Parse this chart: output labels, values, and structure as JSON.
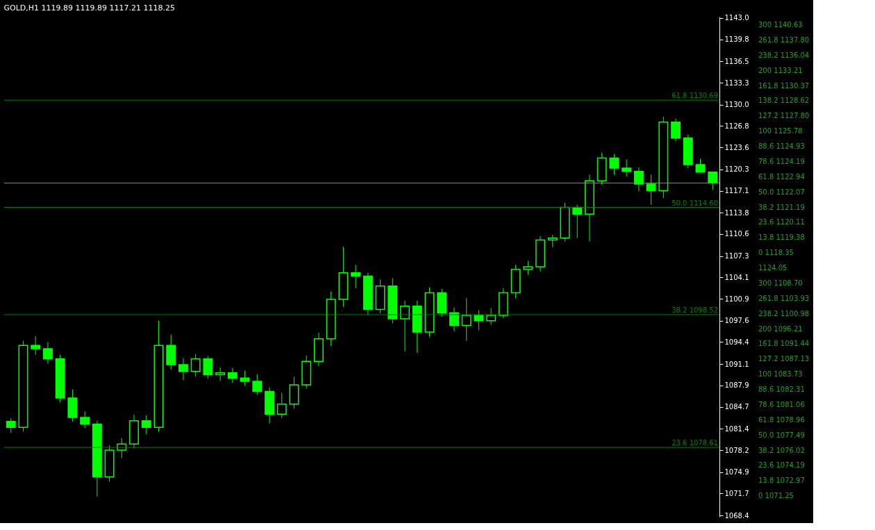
{
  "chart_data": {
    "type": "candlestick",
    "title": "GOLD,H1  1119.89 1119.89 1117.21 1118.25",
    "categories": [
      null,
      null,
      null,
      null,
      null,
      null,
      null,
      null,
      null,
      null,
      null,
      null,
      null,
      null,
      null,
      null,
      null,
      null,
      null,
      null,
      null,
      null,
      null,
      null,
      null,
      null,
      null,
      null,
      null,
      null,
      null,
      null,
      null,
      null,
      null,
      null,
      null,
      null,
      null,
      null,
      null,
      null,
      null,
      null,
      null,
      null,
      null,
      null,
      null,
      null,
      null,
      null,
      null,
      null,
      null,
      null,
      null,
      null
    ],
    "ohlc": [
      [
        1082.5,
        1083.0,
        1080.8,
        1081.6
      ],
      [
        1081.6,
        1094.6,
        1081.0,
        1093.9
      ],
      [
        1093.9,
        1095.3,
        1092.5,
        1093.4
      ],
      [
        1093.4,
        1094.4,
        1091.2,
        1091.9
      ],
      [
        1091.9,
        1092.5,
        1085.4,
        1086.0
      ],
      [
        1086.0,
        1087.3,
        1082.5,
        1083.1
      ],
      [
        1083.1,
        1084.0,
        1081.5,
        1082.1
      ],
      [
        1082.1,
        1082.6,
        1071.25,
        1074.2
      ],
      [
        1074.2,
        1078.9,
        1073.5,
        1078.2
      ],
      [
        1078.2,
        1080.0,
        1077.0,
        1079.1
      ],
      [
        1079.1,
        1083.5,
        1078.5,
        1082.6
      ],
      [
        1082.6,
        1083.4,
        1080.6,
        1081.6
      ],
      [
        1081.6,
        1097.6,
        1081.0,
        1093.9
      ],
      [
        1093.9,
        1095.5,
        1090.3,
        1091.0
      ],
      [
        1091.0,
        1092.0,
        1088.7,
        1090.0
      ],
      [
        1090.0,
        1092.6,
        1089.2,
        1091.9
      ],
      [
        1091.9,
        1092.3,
        1088.9,
        1089.5
      ],
      [
        1089.5,
        1090.6,
        1088.6,
        1089.8
      ],
      [
        1089.8,
        1090.5,
        1088.3,
        1089.0
      ],
      [
        1089.0,
        1090.1,
        1087.9,
        1088.5
      ],
      [
        1088.5,
        1089.6,
        1086.5,
        1087.0
      ],
      [
        1087.0,
        1087.6,
        1082.2,
        1083.6
      ],
      [
        1083.6,
        1086.8,
        1083.0,
        1085.1
      ],
      [
        1085.1,
        1089.2,
        1084.4,
        1088.0
      ],
      [
        1088.0,
        1092.4,
        1087.4,
        1091.5
      ],
      [
        1091.5,
        1095.8,
        1090.8,
        1094.9
      ],
      [
        1094.9,
        1102.0,
        1093.8,
        1100.8
      ],
      [
        1100.8,
        1108.7,
        1099.7,
        1104.8
      ],
      [
        1104.8,
        1106.0,
        1102.5,
        1104.3
      ],
      [
        1104.3,
        1104.8,
        1098.5,
        1099.3
      ],
      [
        1099.3,
        1103.8,
        1098.7,
        1102.8
      ],
      [
        1102.8,
        1104.0,
        1097.2,
        1097.9
      ],
      [
        1097.9,
        1100.6,
        1093.0,
        1099.8
      ],
      [
        1099.8,
        1100.6,
        1092.8,
        1095.9
      ],
      [
        1095.9,
        1102.6,
        1095.2,
        1101.8
      ],
      [
        1101.8,
        1102.4,
        1098.2,
        1098.8
      ],
      [
        1098.8,
        1099.6,
        1096.0,
        1096.9
      ],
      [
        1096.9,
        1101.0,
        1094.6,
        1098.4
      ],
      [
        1098.4,
        1099.2,
        1096.2,
        1097.6
      ],
      [
        1097.6,
        1099.5,
        1097.0,
        1098.4
      ],
      [
        1098.4,
        1102.5,
        1098.0,
        1101.8
      ],
      [
        1101.8,
        1106.0,
        1101.0,
        1105.3
      ],
      [
        1105.3,
        1106.6,
        1104.5,
        1105.7
      ],
      [
        1105.7,
        1110.3,
        1105.0,
        1109.7
      ],
      [
        1109.7,
        1110.5,
        1108.6,
        1110.0
      ],
      [
        1110.0,
        1115.3,
        1109.5,
        1114.6
      ],
      [
        1114.6,
        1115.0,
        1110.0,
        1113.6
      ],
      [
        1113.6,
        1119.5,
        1109.5,
        1118.6
      ],
      [
        1118.6,
        1122.8,
        1118.0,
        1122.0
      ],
      [
        1122.0,
        1122.6,
        1119.5,
        1120.5
      ],
      [
        1120.5,
        1121.8,
        1119.2,
        1120.0
      ],
      [
        1120.0,
        1120.6,
        1117.0,
        1118.1
      ],
      [
        1118.1,
        1119.5,
        1115.0,
        1117.1
      ],
      [
        1117.1,
        1128.2,
        1116.0,
        1127.4
      ],
      [
        1127.4,
        1127.9,
        1124.5,
        1125.0
      ],
      [
        1125.0,
        1125.5,
        1120.5,
        1121.0
      ],
      [
        1121.0,
        1121.9,
        1119.9,
        1119.9
      ],
      [
        1119.89,
        1119.89,
        1117.21,
        1118.25
      ]
    ],
    "color": "#00ff00",
    "ylim": [
      1068.2,
      1143.2
    ],
    "yticks": [
      1068.4,
      1071.7,
      1074.9,
      1078.2,
      1081.4,
      1084.7,
      1087.9,
      1091.1,
      1094.4,
      1097.6,
      1100.9,
      1104.1,
      1107.3,
      1110.6,
      1113.8,
      1117.1,
      1120.3,
      1123.6,
      1126.8,
      {
        "value": 1130,
        "label": "1130.0"
      },
      1133.3,
      1136.5,
      1139.8,
      {
        "value": 1143,
        "label": "1143.0"
      }
    ],
    "tick_labels": "y",
    "grid": false,
    "ref_lines": [
      {
        "axis": "y",
        "value": 1130.69,
        "label": "61.8 1130.69",
        "color": "#008000"
      },
      {
        "axis": "y",
        "value": 1114.6,
        "label": "50.0 1114.60",
        "color": "#008000"
      },
      {
        "axis": "y",
        "value": 1098.52,
        "label": "38.2 1098.52",
        "color": "#008000"
      },
      {
        "axis": "y",
        "value": 1078.61,
        "label": "23.6 1078.61",
        "color": "#008000"
      },
      {
        "axis": "y",
        "value": 1118.25,
        "label": null,
        "color": "#778899"
      }
    ],
    "annotations": [
      "300 1140.63",
      "261.8 1137.80",
      "238.2 1136.04",
      "200 1133.21",
      "161.8 1130.37",
      "138.2 1128.62",
      "127.2 1127.80",
      "100 1125.78",
      "88.6 1124.93",
      "78.6 1124.19",
      "61.8 1122.94",
      "50.0 1122.07",
      "38.2 1121.19",
      "23.6 1120.11",
      "13.8 1119.38",
      "0 1118.35",
      "1124.05",
      "300 1108.70",
      "261.8 1103.93",
      "238.2 1100.98",
      "200 1096.21",
      "161.8 1091.44",
      "127.2 1087.13",
      "100 1083.73",
      "88.6 1082.31",
      "78.6 1081.06",
      "61.8 1078.96",
      "50.0 1077.49",
      "38.2 1076.02",
      "23.6 1074.19",
      "13.8 1072.97",
      "0 1071.25"
    ]
  }
}
